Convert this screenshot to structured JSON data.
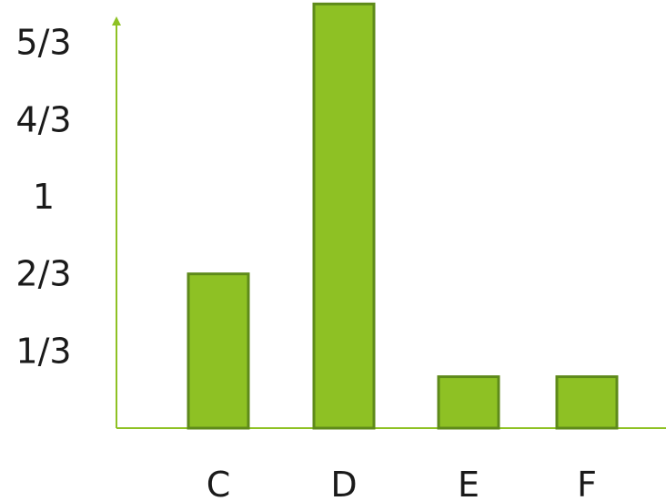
{
  "chart_data": {
    "type": "bar",
    "categories": [
      "C",
      "D",
      "E",
      "F"
    ],
    "values": [
      0.6667,
      1.8333,
      0.2222,
      0.2222
    ],
    "y_ticks": [
      {
        "value": 0.3333,
        "label": "1/3"
      },
      {
        "value": 0.6667,
        "label": "2/3"
      },
      {
        "value": 1,
        "label": "1"
      },
      {
        "value": 1.3333,
        "label": "4/3"
      },
      {
        "value": 1.6667,
        "label": "5/3"
      }
    ],
    "title": "",
    "xlabel": "",
    "ylabel": "",
    "ylim": [
      0,
      2.0
    ],
    "grid": false,
    "legend": "none",
    "colors": {
      "bar_fill": "#8ec124",
      "bar_stroke": "#5e8a1a",
      "axis": "#8ec124"
    }
  }
}
